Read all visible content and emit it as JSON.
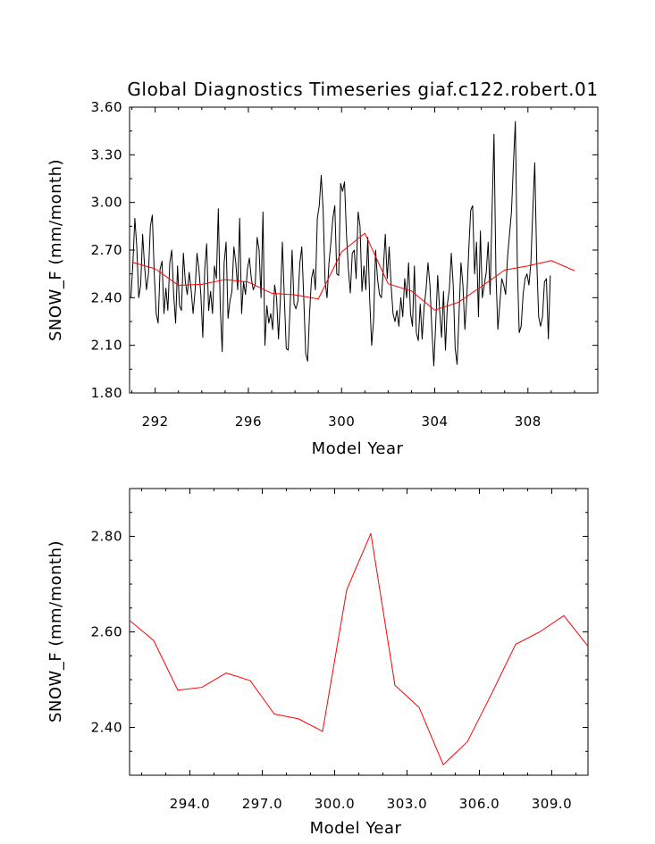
{
  "chart_data": [
    {
      "type": "line",
      "title": "Global Diagnostics Timeseries giaf.c122.robert.01",
      "xlabel": "Model Year",
      "ylabel": "SNOW_F (mm/month)",
      "xlim": [
        290.9,
        311.0
      ],
      "ylim": [
        1.8,
        3.6
      ],
      "xticks": [
        292,
        296,
        300,
        304,
        308
      ],
      "xtick_labels": [
        "292",
        "296",
        "300",
        "304",
        "308"
      ],
      "yticks": [
        1.8,
        2.1,
        2.4,
        2.7,
        3.0,
        3.3,
        3.6
      ],
      "ytick_labels": [
        "1.80",
        "2.10",
        "2.40",
        "2.70",
        "3.00",
        "3.30",
        "3.60"
      ],
      "grid": false,
      "series": [
        {
          "color": "#000000",
          "x_start": 290.96,
          "x_step": 0.0833333,
          "values": [
            2.4,
            2.62,
            2.9,
            2.72,
            2.4,
            2.48,
            2.8,
            2.6,
            2.45,
            2.55,
            2.85,
            2.92,
            2.55,
            2.3,
            2.24,
            2.58,
            2.63,
            2.3,
            2.46,
            2.32,
            2.62,
            2.7,
            2.42,
            2.24,
            2.6,
            2.35,
            2.32,
            2.68,
            2.5,
            2.42,
            2.56,
            2.45,
            2.3,
            2.44,
            2.68,
            2.58,
            2.42,
            2.15,
            2.58,
            2.74,
            2.32,
            2.44,
            2.3,
            2.6,
            2.52,
            2.96,
            2.34,
            2.06,
            2.62,
            2.75,
            2.27,
            2.38,
            2.44,
            2.72,
            2.62,
            2.45,
            2.9,
            2.3,
            2.5,
            2.42,
            2.58,
            2.65,
            2.52,
            2.45,
            2.48,
            2.78,
            2.7,
            2.4,
            2.94,
            2.1,
            2.35,
            2.24,
            2.3,
            2.2,
            2.48,
            2.4,
            2.14,
            2.4,
            2.75,
            2.4,
            2.08,
            2.07,
            2.35,
            2.7,
            2.36,
            2.33,
            2.38,
            2.62,
            2.72,
            2.4,
            2.05,
            2.0,
            2.3,
            2.52,
            2.58,
            2.45,
            2.9,
            2.98,
            3.17,
            2.95,
            2.5,
            2.4,
            2.62,
            2.75,
            2.9,
            2.98,
            2.55,
            2.54,
            3.12,
            3.07,
            3.13,
            2.8,
            2.58,
            2.43,
            2.68,
            2.7,
            2.52,
            2.94,
            2.85,
            2.44,
            2.6,
            2.45,
            2.78,
            2.38,
            2.1,
            2.26,
            2.7,
            2.52,
            2.42,
            2.4,
            2.58,
            2.8,
            2.52,
            2.72,
            2.48,
            2.3,
            2.25,
            2.32,
            2.22,
            2.4,
            2.28,
            2.52,
            2.4,
            2.62,
            2.3,
            2.22,
            2.6,
            2.18,
            2.13,
            2.36,
            2.14,
            2.34,
            2.45,
            2.62,
            2.48,
            2.2,
            1.97,
            2.24,
            2.54,
            2.32,
            2.15,
            2.44,
            2.07,
            2.36,
            2.45,
            2.68,
            2.48,
            2.08,
            1.98,
            2.3,
            2.62,
            2.48,
            2.2,
            2.4,
            2.7,
            2.95,
            2.98,
            2.55,
            2.75,
            2.28,
            2.82,
            2.4,
            2.48,
            2.56,
            2.75,
            2.42,
            2.94,
            3.43,
            2.55,
            2.2,
            2.36,
            2.52,
            2.48,
            2.42,
            2.66,
            2.8,
            2.94,
            3.24,
            3.51,
            2.62,
            2.18,
            2.22,
            2.42,
            2.52,
            2.55,
            2.48,
            2.62,
            2.95,
            3.25,
            2.64,
            2.28,
            2.22,
            2.28,
            2.5,
            2.52,
            2.14,
            2.54
          ]
        },
        {
          "color": "#ff0000",
          "x": [
            291.0,
            292.0,
            293.0,
            294.0,
            295.0,
            296.0,
            297.0,
            298.0,
            299.0,
            300.0,
            301.0,
            302.0,
            303.0,
            304.0,
            305.0,
            306.0,
            307.0,
            308.0,
            309.0,
            310.0
          ],
          "values": [
            2.624,
            2.582,
            2.478,
            2.484,
            2.514,
            2.498,
            2.428,
            2.418,
            2.392,
            2.688,
            2.806,
            2.488,
            2.442,
            2.322,
            2.37,
            2.47,
            2.574,
            2.6,
            2.634,
            2.57
          ]
        }
      ]
    },
    {
      "type": "line",
      "title": "",
      "xlabel": "Model Year",
      "ylabel": "SNOW_F (mm/month)",
      "xlim": [
        291.5,
        310.5
      ],
      "ylim": [
        2.3,
        2.9
      ],
      "xticks": [
        294,
        297,
        300,
        303,
        306,
        309
      ],
      "xtick_labels": [
        "294.0",
        "297.0",
        "300.0",
        "303.0",
        "306.0",
        "309.0"
      ],
      "yticks": [
        2.4,
        2.6,
        2.8
      ],
      "ytick_labels": [
        "2.40",
        "2.60",
        "2.80"
      ],
      "grid": false,
      "series": [
        {
          "color": "#ff0000",
          "x": [
            291.5,
            292.5,
            293.5,
            294.5,
            295.5,
            296.5,
            297.5,
            298.5,
            299.5,
            300.5,
            301.5,
            302.5,
            303.5,
            304.5,
            305.5,
            306.5,
            307.5,
            308.5,
            309.5,
            310.5
          ],
          "values": [
            2.624,
            2.582,
            2.478,
            2.484,
            2.514,
            2.498,
            2.428,
            2.418,
            2.392,
            2.688,
            2.806,
            2.488,
            2.442,
            2.322,
            2.37,
            2.47,
            2.574,
            2.6,
            2.634,
            2.57
          ]
        }
      ]
    }
  ]
}
